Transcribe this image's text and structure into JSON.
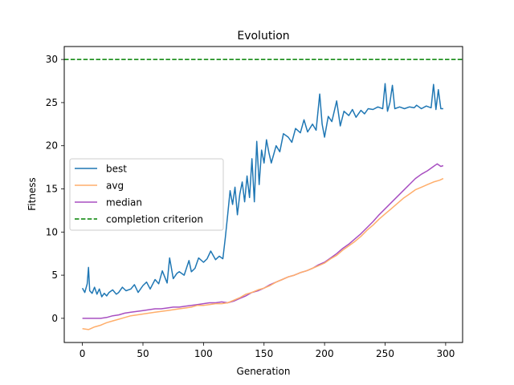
{
  "chart_data": {
    "type": "line",
    "title": "Evolution",
    "xlabel": "Generation",
    "ylabel": "Fitness",
    "xlim": [
      -15,
      314
    ],
    "ylim": [
      -2.8,
      31.5
    ],
    "xticks": [
      0,
      50,
      100,
      150,
      200,
      250,
      300
    ],
    "yticks": [
      0,
      5,
      10,
      15,
      20,
      25,
      30
    ],
    "grid": false,
    "legend_position": "center-left",
    "series": [
      {
        "name": "best",
        "color": "#1f77b4",
        "style": "solid",
        "x": [
          0,
          2,
          4,
          5,
          6,
          8,
          10,
          12,
          14,
          16,
          18,
          20,
          22,
          25,
          28,
          30,
          33,
          36,
          40,
          43,
          46,
          50,
          53,
          56,
          60,
          63,
          66,
          70,
          72,
          75,
          78,
          80,
          84,
          88,
          90,
          93,
          96,
          100,
          103,
          106,
          110,
          113,
          116,
          118,
          120,
          122,
          124,
          126,
          128,
          130,
          132,
          134,
          136,
          138,
          140,
          142,
          144,
          146,
          148,
          150,
          152,
          154,
          156,
          158,
          160,
          163,
          166,
          170,
          173,
          176,
          180,
          183,
          186,
          190,
          193,
          196,
          198,
          200,
          203,
          206,
          210,
          213,
          216,
          220,
          223,
          226,
          230,
          233,
          236,
          240,
          244,
          248,
          250,
          252,
          254,
          256,
          258,
          262,
          266,
          270,
          274,
          276,
          280,
          284,
          288,
          290,
          292,
          294,
          296,
          298
        ],
        "y": [
          3.5,
          3.0,
          4.0,
          5.9,
          3.2,
          2.9,
          3.6,
          2.8,
          3.4,
          2.5,
          2.9,
          2.6,
          3.0,
          3.3,
          2.8,
          3.0,
          3.6,
          3.2,
          3.4,
          3.9,
          3.0,
          3.8,
          4.2,
          3.4,
          4.5,
          4.0,
          5.5,
          4.1,
          7.0,
          4.6,
          5.2,
          5.4,
          5.0,
          6.7,
          5.4,
          5.8,
          7.0,
          6.5,
          6.9,
          7.8,
          6.8,
          7.2,
          6.9,
          9.3,
          12.0,
          14.8,
          13.2,
          15.2,
          12.0,
          14.4,
          15.8,
          13.5,
          16.5,
          14.0,
          18.5,
          13.5,
          20.5,
          15.5,
          19.5,
          18.0,
          20.7,
          19.2,
          18.0,
          19.0,
          20.0,
          19.3,
          21.4,
          21.0,
          20.4,
          22.0,
          21.5,
          23.0,
          21.6,
          22.5,
          21.8,
          26.0,
          22.5,
          21.0,
          23.4,
          22.8,
          25.2,
          22.3,
          24.0,
          23.5,
          24.2,
          23.3,
          24.1,
          23.7,
          24.3,
          24.2,
          24.5,
          24.3,
          27.2,
          24.0,
          25.0,
          27.0,
          24.3,
          24.5,
          24.3,
          24.5,
          24.4,
          24.7,
          24.3,
          24.6,
          24.4,
          27.1,
          24.2,
          26.5,
          24.3,
          24.3
        ]
      },
      {
        "name": "avg",
        "color": "#ffae6b",
        "style": "solid",
        "x": [
          0,
          5,
          10,
          15,
          20,
          25,
          30,
          35,
          40,
          45,
          50,
          55,
          60,
          65,
          70,
          75,
          80,
          85,
          90,
          95,
          100,
          105,
          110,
          115,
          120,
          125,
          130,
          135,
          140,
          145,
          150,
          155,
          160,
          165,
          170,
          175,
          180,
          185,
          190,
          195,
          200,
          205,
          210,
          215,
          220,
          225,
          230,
          235,
          240,
          245,
          250,
          255,
          260,
          265,
          270,
          275,
          280,
          285,
          290,
          295,
          298
        ],
        "y": [
          -1.2,
          -1.3,
          -1.0,
          -0.8,
          -0.5,
          -0.3,
          -0.1,
          0.1,
          0.3,
          0.4,
          0.5,
          0.6,
          0.7,
          0.8,
          0.9,
          1.0,
          1.1,
          1.2,
          1.3,
          1.5,
          1.5,
          1.6,
          1.7,
          1.7,
          1.8,
          2.1,
          2.4,
          2.8,
          3.0,
          3.3,
          3.5,
          3.8,
          4.2,
          4.5,
          4.8,
          5.0,
          5.3,
          5.5,
          5.8,
          6.1,
          6.4,
          6.9,
          7.3,
          7.9,
          8.4,
          8.9,
          9.5,
          10.2,
          10.8,
          11.5,
          12.1,
          12.7,
          13.3,
          13.9,
          14.4,
          14.9,
          15.2,
          15.5,
          15.8,
          16.0,
          16.2
        ]
      },
      {
        "name": "median",
        "color": "#a84fc1",
        "style": "solid",
        "x": [
          0,
          5,
          10,
          15,
          20,
          25,
          30,
          35,
          40,
          45,
          50,
          55,
          60,
          65,
          70,
          75,
          80,
          85,
          90,
          95,
          100,
          105,
          110,
          115,
          120,
          125,
          130,
          135,
          140,
          145,
          150,
          155,
          160,
          165,
          170,
          175,
          180,
          185,
          190,
          195,
          200,
          205,
          210,
          215,
          220,
          225,
          230,
          235,
          240,
          245,
          250,
          255,
          260,
          265,
          270,
          275,
          280,
          285,
          290,
          293,
          296,
          298
        ],
        "y": [
          0.0,
          0.0,
          0.0,
          0.0,
          0.1,
          0.3,
          0.4,
          0.6,
          0.7,
          0.8,
          0.9,
          1.0,
          1.1,
          1.1,
          1.2,
          1.3,
          1.3,
          1.4,
          1.5,
          1.6,
          1.7,
          1.8,
          1.8,
          1.9,
          1.8,
          2.0,
          2.3,
          2.6,
          3.0,
          3.2,
          3.5,
          3.9,
          4.2,
          4.5,
          4.8,
          5.0,
          5.3,
          5.5,
          5.8,
          6.2,
          6.5,
          7.0,
          7.5,
          8.1,
          8.6,
          9.2,
          9.8,
          10.5,
          11.2,
          12.0,
          12.7,
          13.4,
          14.1,
          14.8,
          15.5,
          16.2,
          16.7,
          17.1,
          17.6,
          17.9,
          17.6,
          17.7
        ]
      },
      {
        "name": "completion criterion",
        "color": "#008000",
        "style": "dashed",
        "x": [
          -15,
          314
        ],
        "y": [
          30,
          30
        ]
      }
    ]
  }
}
